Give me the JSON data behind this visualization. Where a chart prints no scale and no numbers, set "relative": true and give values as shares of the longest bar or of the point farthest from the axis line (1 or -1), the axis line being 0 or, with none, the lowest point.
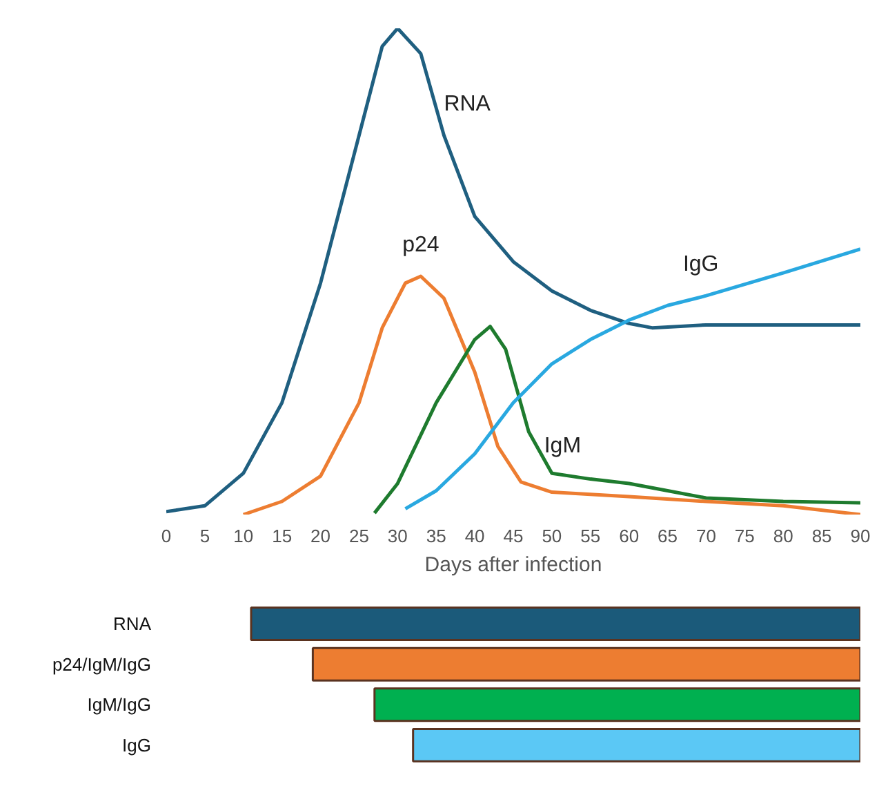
{
  "chart_data": [
    {
      "type": "line",
      "relative": true,
      "xlabel": "Days after infection",
      "xlim": [
        0,
        90
      ],
      "xticks": [
        0,
        5,
        10,
        15,
        20,
        25,
        30,
        35,
        40,
        45,
        50,
        55,
        60,
        65,
        70,
        75,
        80,
        85,
        90
      ],
      "grid": false,
      "marker": "none",
      "line_style": "solid",
      "tick_labels": "x",
      "series": [
        {
          "name": "RNA",
          "color": "#1f5f80",
          "x": [
            0,
            5,
            10,
            15,
            20,
            25,
            28,
            30,
            33,
            36,
            40,
            45,
            50,
            55,
            60,
            63,
            70,
            80,
            90
          ],
          "values": [
            0.006,
            0.018,
            0.085,
            0.23,
            0.476,
            0.78,
            0.963,
            1.0,
            0.948,
            0.78,
            0.613,
            0.52,
            0.46,
            0.42,
            0.393,
            0.384,
            0.39,
            0.39,
            0.39
          ]
        },
        {
          "name": "p24",
          "color": "#ed7d31",
          "x": [
            10,
            15,
            20,
            25,
            28,
            31,
            33,
            36,
            40,
            43,
            46,
            50,
            60,
            70,
            80,
            90
          ],
          "values": [
            0,
            0.027,
            0.079,
            0.23,
            0.384,
            0.476,
            0.49,
            0.445,
            0.293,
            0.14,
            0.067,
            0.046,
            0.037,
            0.027,
            0.018,
            0
          ]
        },
        {
          "name": "IgM",
          "color": "#1e7b2e",
          "x": [
            27,
            30,
            35,
            40,
            42,
            44,
            47,
            50,
            55,
            60,
            65,
            70,
            80,
            90
          ],
          "values": [
            0.003,
            0.064,
            0.23,
            0.36,
            0.387,
            0.34,
            0.17,
            0.085,
            0.073,
            0.064,
            0.049,
            0.034,
            0.027,
            0.024
          ]
        },
        {
          "name": "IgG",
          "color": "#29a8e0",
          "x": [
            31,
            35,
            40,
            45,
            50,
            55,
            60,
            65,
            70,
            80,
            90
          ],
          "values": [
            0.012,
            0.049,
            0.125,
            0.23,
            0.31,
            0.36,
            0.4,
            0.43,
            0.45,
            0.497,
            0.546
          ]
        }
      ]
    },
    {
      "type": "bar",
      "orientation": "horizontal",
      "xlim": [
        0,
        90
      ],
      "tick_labels": "y",
      "grid": false,
      "categories": [
        "RNA",
        "p24/IgM/IgG",
        "IgM/IgG",
        "IgG"
      ],
      "base": [
        11,
        19,
        27,
        32
      ],
      "values": [
        79,
        71,
        63,
        58
      ],
      "colors": [
        "#1b5a7a",
        "#ed7d31",
        "#00b050",
        "#5bc8f5"
      ]
    }
  ]
}
